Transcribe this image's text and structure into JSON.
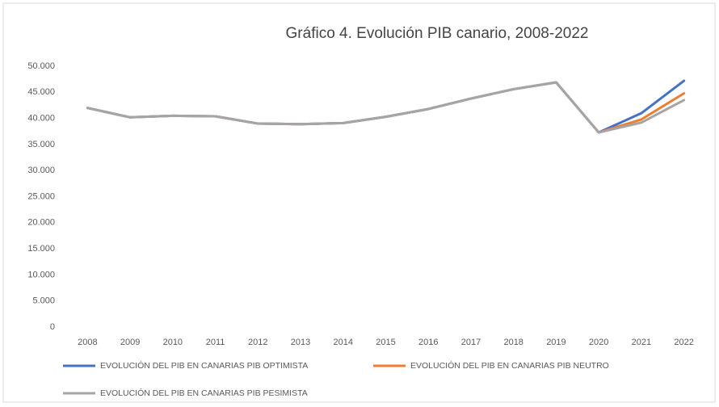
{
  "chart_data": {
    "type": "line",
    "title": "Gráfico 4. Evolución PIB canario, 2008-2022",
    "categories": [
      "2008",
      "2009",
      "2010",
      "2011",
      "2012",
      "2013",
      "2014",
      "2015",
      "2016",
      "2017",
      "2018",
      "2019",
      "2020",
      "2021",
      "2022"
    ],
    "series": [
      {
        "name": "EVOLUCIÓN DEL PIB EN CANARIAS PIB OPTIMISTA",
        "color": "#4472c4",
        "values": [
          42000,
          40200,
          40500,
          40400,
          39000,
          38900,
          39100,
          40300,
          41800,
          43800,
          45600,
          46900,
          37300,
          41000,
          47200
        ]
      },
      {
        "name": "EVOLUCIÓN DEL PIB EN CANARIAS PIB NEUTRO",
        "color": "#ed7d31",
        "values": [
          42000,
          40200,
          40500,
          40400,
          39000,
          38900,
          39100,
          40300,
          41800,
          43800,
          45600,
          46900,
          37300,
          39800,
          44800
        ]
      },
      {
        "name": "EVOLUCIÓN DEL PIB EN CANARIAS PIB PESIMISTA",
        "color": "#a5a5a5",
        "values": [
          42000,
          40200,
          40500,
          40400,
          39000,
          38900,
          39100,
          40300,
          41800,
          43800,
          45600,
          46900,
          37300,
          39200,
          43500
        ]
      }
    ],
    "ylim": [
      0,
      50000
    ],
    "yticks": [
      0,
      {
        "value": 5000,
        "label": "5.000"
      },
      {
        "value": 10000,
        "label": "10.000"
      },
      {
        "value": 15000,
        "label": "15.000"
      },
      {
        "value": 20000,
        "label": "20.000"
      },
      {
        "value": 25000,
        "label": "25.000"
      },
      {
        "value": 30000,
        "label": "30.000"
      },
      {
        "value": 35000,
        "label": "35.000"
      },
      {
        "value": 40000,
        "label": "40.000"
      },
      {
        "value": 45000,
        "label": "45.000"
      },
      {
        "value": 50000,
        "label": "50.000"
      }
    ],
    "grid": false,
    "legend": "bottom"
  }
}
